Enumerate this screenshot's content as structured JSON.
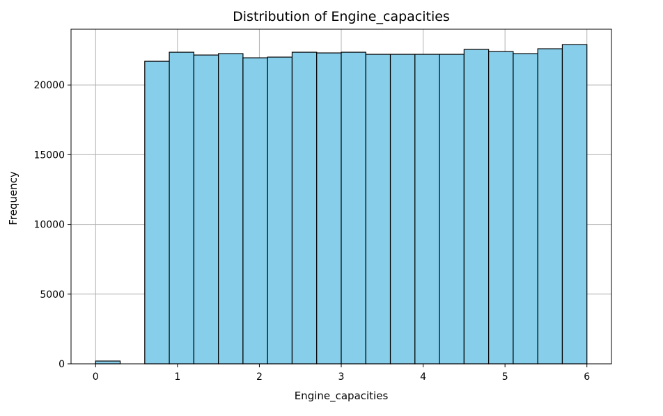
{
  "chart_data": {
    "type": "bar",
    "title": "Distribution of Engine_capacities",
    "xlabel": "Engine_capacities",
    "ylabel": "Frequency",
    "xlim": [
      -0.3,
      6.3
    ],
    "ylim": [
      0,
      24000
    ],
    "xticks": [
      0,
      1,
      2,
      3,
      4,
      5,
      6
    ],
    "yticks": [
      0,
      5000,
      10000,
      15000,
      20000
    ],
    "grid": true,
    "bar_color": "#87CEEB",
    "edge_color": "#000000",
    "bin_edges": [
      0,
      0.3,
      0.6,
      0.9,
      1.2,
      1.5,
      1.8,
      2.1,
      2.4,
      2.7,
      3.0,
      3.3,
      3.6,
      3.9,
      4.2,
      4.5,
      4.8,
      5.1,
      5.4,
      5.7,
      6.0
    ],
    "values": [
      200,
      0,
      21700,
      22350,
      22150,
      22250,
      21950,
      22000,
      22350,
      22300,
      22350,
      22200,
      22200,
      22200,
      22200,
      22550,
      22400,
      22250,
      22600,
      22900
    ]
  }
}
